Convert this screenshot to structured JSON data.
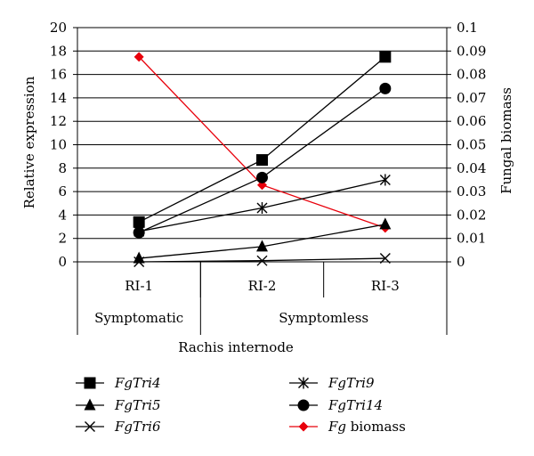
{
  "chart_data": {
    "type": "line",
    "categories": [
      "RI-1",
      "RI-2",
      "RI-3"
    ],
    "category_groups": [
      {
        "label": "Symptomatic",
        "categories": [
          "RI-1"
        ]
      },
      {
        "label": "Symptomless",
        "categories": [
          "RI-2",
          "RI-3"
        ]
      }
    ],
    "xlabel": "Rachis internode",
    "ylabel_left": "Relative expression",
    "ylabel_right": "Fungal biomass",
    "ylim_left": [
      0,
      20
    ],
    "yticks_left": [
      0,
      2,
      4,
      6,
      8,
      10,
      12,
      14,
      16,
      18,
      20
    ],
    "ylim_right": [
      0,
      0.1
    ],
    "yticks_right": [
      "0",
      "0.01",
      "0.02",
      "0.03",
      "0.04",
      "0.05",
      "0.06",
      "0.07",
      "0.08",
      "0.09",
      "0.1"
    ],
    "grid": "horizontal",
    "legend_position": "bottom",
    "series": [
      {
        "name": "FgTri4",
        "name_italic": "FgTri4",
        "name_rest": "",
        "axis": "left",
        "marker": "square",
        "color": "#000000",
        "values": [
          3.4,
          8.7,
          17.5
        ]
      },
      {
        "name": "FgTri5",
        "name_italic": "FgTri5",
        "name_rest": "",
        "axis": "left",
        "marker": "triangle",
        "color": "#000000",
        "values": [
          0.3,
          1.3,
          3.2
        ]
      },
      {
        "name": "FgTri6",
        "name_italic": "FgTri6",
        "name_rest": "",
        "axis": "left",
        "marker": "x",
        "color": "#000000",
        "values": [
          0.0,
          0.1,
          0.3
        ]
      },
      {
        "name": "FgTri9",
        "name_italic": "FgTri9",
        "name_rest": "",
        "axis": "left",
        "marker": "star",
        "color": "#000000",
        "values": [
          2.6,
          4.6,
          7.0
        ]
      },
      {
        "name": "FgTri14",
        "name_italic": "FgTri14",
        "name_rest": "",
        "axis": "left",
        "marker": "circle",
        "color": "#000000",
        "values": [
          2.5,
          7.2,
          14.8
        ]
      },
      {
        "name": "Fg biomass",
        "name_italic": "Fg",
        "name_rest": " biomass",
        "axis": "right",
        "marker": "diamond",
        "color": "#e8000b",
        "values": [
          0.0875,
          0.0328,
          0.0145
        ]
      }
    ]
  }
}
